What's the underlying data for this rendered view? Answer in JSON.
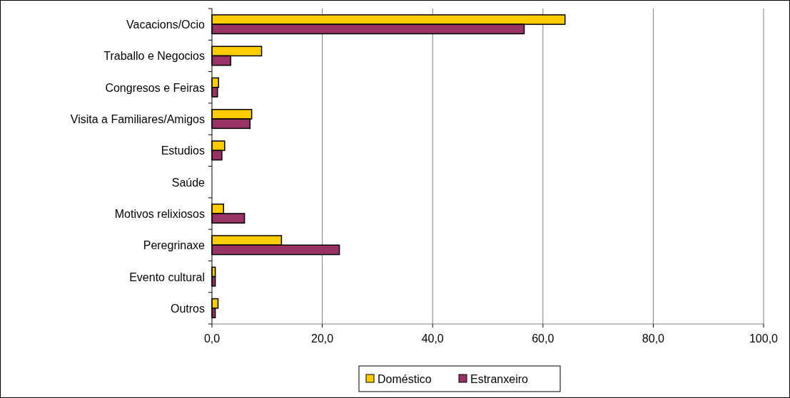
{
  "chart_data": {
    "type": "bar",
    "orientation": "horizontal",
    "categories": [
      "Vacacions/Ocio",
      "Traballo e Negocios",
      "Congresos e Feiras",
      "Visita a Familiares/Amigos",
      "Estudios",
      "Saúde",
      "Motivos relixiosos",
      "Peregrinaxe",
      "Evento cultural",
      "Outros"
    ],
    "series": [
      {
        "name": "Doméstico",
        "color": "#ffcc00",
        "values": [
          64.0,
          9.0,
          1.2,
          7.2,
          2.3,
          0,
          2.1,
          12.6,
          0.6,
          1.1
        ]
      },
      {
        "name": "Estranxeiro",
        "color": "#993366",
        "values": [
          56.6,
          3.4,
          1.0,
          6.9,
          1.8,
          0,
          5.9,
          23.1,
          0.6,
          0.6
        ]
      }
    ],
    "xlim": [
      0,
      100
    ],
    "xticks": [
      {
        "value": 0,
        "label": "0,0"
      },
      {
        "value": 20,
        "label": "20,0"
      },
      {
        "value": 40,
        "label": "40,0"
      },
      {
        "value": 60,
        "label": "60,0"
      },
      {
        "value": 80,
        "label": "80,0"
      },
      {
        "value": 100,
        "label": "100,0"
      }
    ],
    "grid": "x",
    "legend": "bottom"
  }
}
